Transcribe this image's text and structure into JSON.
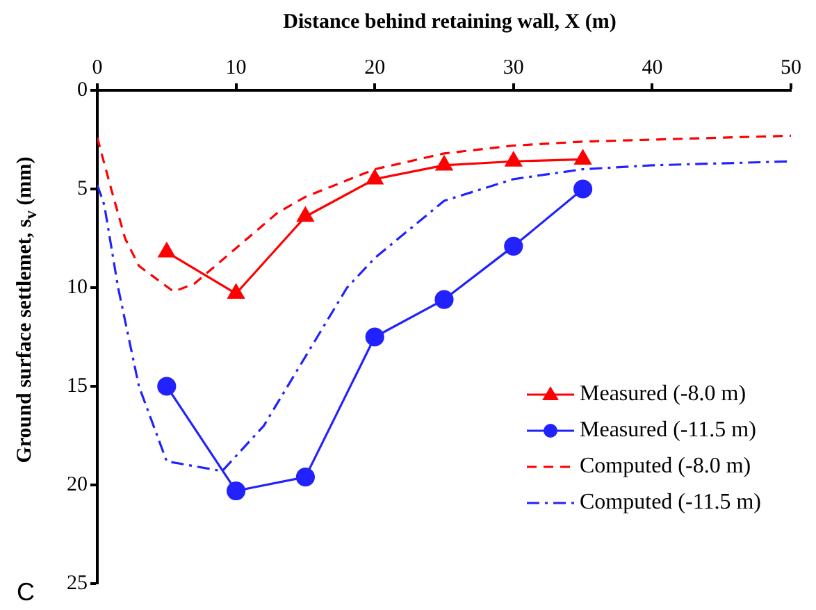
{
  "chart_data": {
    "type": "line",
    "xlabel": "Distance behind retaining wall, X (m)",
    "ylabel": "Ground surface settlemet, s$_{v}$ (mm)",
    "annotations": [
      "C"
    ],
    "xlim": [
      0,
      50
    ],
    "xticks": [
      0,
      10,
      20,
      30,
      40,
      50
    ],
    "ylim": [
      25,
      0
    ],
    "yticks": [
      0,
      5,
      10,
      15,
      20,
      25
    ],
    "grid": false,
    "legend": "bottom right",
    "series": [
      {
        "name": "Measured (-8.0 m)",
        "color": "#ff0000",
        "marker": "triangle",
        "line_style": "solid",
        "x": [
          5,
          10,
          15,
          20,
          25,
          30,
          35
        ],
        "values": [
          8.2,
          10.3,
          6.4,
          4.5,
          3.8,
          3.6,
          3.5
        ]
      },
      {
        "name": "Measured (-11.5 m)",
        "color": "#2222ff",
        "marker": "circle",
        "line_style": "solid",
        "x": [
          5,
          10,
          15,
          20,
          25,
          30,
          35
        ],
        "values": [
          15.0,
          20.3,
          19.6,
          12.5,
          10.6,
          7.9,
          5.0
        ]
      },
      {
        "name": "Computed (-8.0 m)",
        "color": "#ff0000",
        "marker": "none",
        "line_style": "dashed",
        "x": [
          0,
          1,
          2,
          3,
          5.5,
          7,
          10,
          13,
          15,
          20,
          25,
          30,
          35,
          40,
          50
        ],
        "values": [
          2.4,
          5,
          7.5,
          8.9,
          10.2,
          9.8,
          8,
          6.2,
          5.4,
          4.0,
          3.2,
          2.8,
          2.6,
          2.5,
          2.3
        ]
      },
      {
        "name": "Computed (-11.5 m)",
        "color": "#2222ff",
        "marker": "none",
        "line_style": "dashdot",
        "x": [
          0,
          0.5,
          1.5,
          3,
          5,
          9,
          12,
          15,
          18,
          20,
          25,
          30,
          35,
          40,
          50
        ],
        "values": [
          4.8,
          5.8,
          10,
          15,
          18.8,
          19.3,
          17,
          13.5,
          10,
          8.5,
          5.6,
          4.5,
          4.0,
          3.8,
          3.6
        ]
      }
    ]
  }
}
